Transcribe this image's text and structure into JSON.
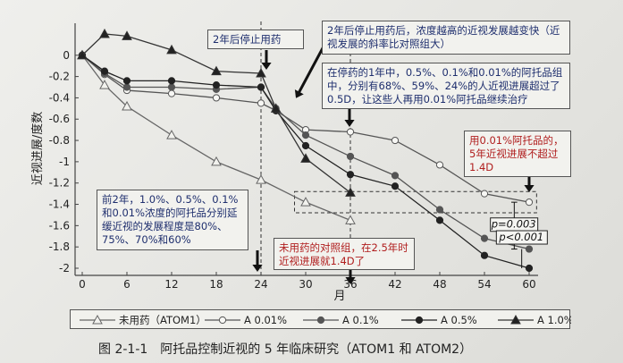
{
  "chart_data": {
    "type": "line",
    "ylabel": "近视进展/度数",
    "xlabel": "月",
    "x_ticks": [
      0,
      6,
      12,
      18,
      24,
      30,
      36,
      42,
      48,
      54,
      60
    ],
    "y_ticks": [
      0,
      -0.2,
      -0.4,
      -0.6,
      -0.8,
      -1,
      -1.2,
      -1.4,
      -1.6,
      -1.8,
      -2
    ],
    "y_tick_labels": [
      "0",
      "-0.2",
      "-0.4",
      "-0.6",
      "-0.8",
      "-1",
      "-1.2",
      "-1.4",
      "-1.6",
      "-1.8",
      "-2"
    ],
    "xlim": [
      0,
      60
    ],
    "ylim": [
      -2,
      0.25
    ],
    "series": [
      {
        "name": "未用药（ATOM1）",
        "marker": "open-triangle",
        "x": [
          0,
          3,
          6,
          12,
          18,
          24,
          30,
          36
        ],
        "y": [
          0,
          -0.28,
          -0.48,
          -0.75,
          -1.0,
          -1.17,
          -1.38,
          -1.55
        ]
      },
      {
        "name": "A 0.01%",
        "marker": "open-circle",
        "x": [
          0,
          3,
          6,
          12,
          18,
          24,
          26,
          30,
          36,
          42,
          48,
          54,
          60
        ],
        "y": [
          0,
          -0.18,
          -0.33,
          -0.36,
          -0.4,
          -0.45,
          -0.52,
          -0.7,
          -0.72,
          -0.8,
          -1.03,
          -1.3,
          -1.38
        ]
      },
      {
        "name": "A 0.1%",
        "marker": "filled-circle",
        "x": [
          0,
          3,
          6,
          12,
          18,
          24,
          26,
          30,
          36,
          42,
          48,
          54,
          60
        ],
        "y": [
          0,
          -0.17,
          -0.3,
          -0.3,
          -0.32,
          -0.3,
          -0.5,
          -0.75,
          -0.95,
          -1.13,
          -1.45,
          -1.72,
          -1.82
        ]
      },
      {
        "name": "A 0.5%",
        "marker": "filled-circle",
        "x": [
          0,
          3,
          6,
          12,
          18,
          24,
          26,
          30,
          36,
          42,
          48,
          54,
          60
        ],
        "y": [
          0,
          -0.15,
          -0.24,
          -0.24,
          -0.28,
          -0.3,
          -0.52,
          -0.85,
          -1.12,
          -1.23,
          -1.55,
          -1.88,
          -2.0
        ]
      },
      {
        "name": "A 1.0%（ATOM1）",
        "marker": "filled-triangle",
        "x": [
          0,
          3,
          6,
          12,
          18,
          24,
          26,
          30,
          36
        ],
        "y": [
          0,
          0.2,
          0.18,
          0.05,
          -0.15,
          -0.17,
          -0.5,
          -0.97,
          -1.29
        ]
      }
    ],
    "annotations": {
      "stop_label": "2年后停止用药",
      "top_right": "2年后停止用药后，浓度越高的近视发展越变快（近视发展的斜率比对照组大）",
      "mid_right": "在停药的1年中，0.5%、0.1%和0.01%的阿托品组中，分别有68%、59%、24%的人近视进展超过了0.5D，让这些人再用0.01%阿托品继续治疗",
      "red_right": "用0.01%阿托品的，5年近视进展不超过1.4D",
      "left_box": "前2年，1.0%、0.5%、0.1%和0.01%浓度的阿托品分别延缓近视的发展程度是80%、75%、70%和60%",
      "red_bottom": "未用药的对照组，在2.5年时近视进展就1.4D了",
      "p1": "p=0.003",
      "p2": "p<0.001"
    }
  },
  "caption": "图 2-1-1　阿托品控制近视的 5 年临床研究（ATOM1 和 ATOM2）"
}
